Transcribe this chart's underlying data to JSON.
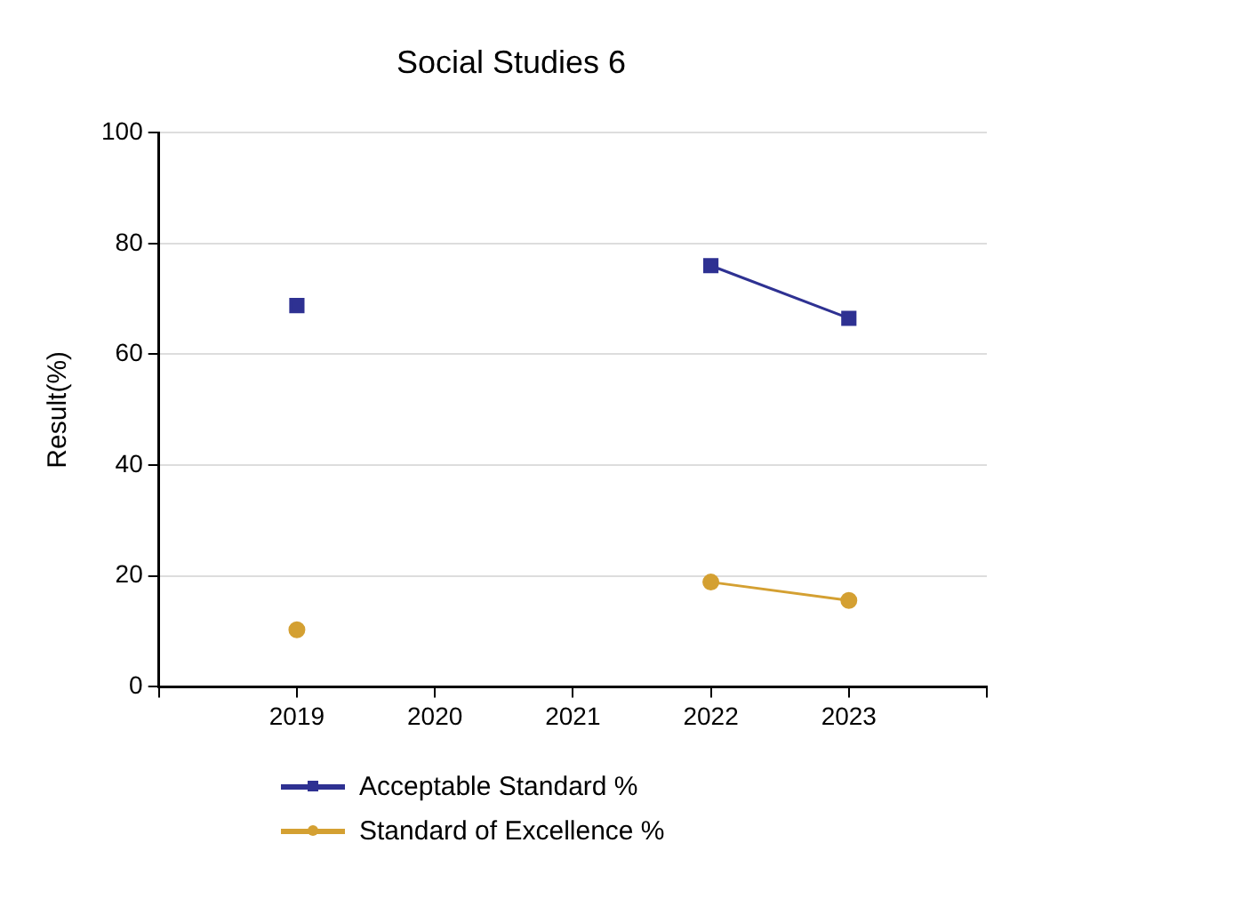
{
  "chart_data": {
    "type": "line",
    "title": "Social Studies 6",
    "ylabel": "Result(%)",
    "categories": [
      "2019",
      "2020",
      "2021",
      "2022",
      "2023"
    ],
    "series": [
      {
        "name": "Acceptable Standard %",
        "color": "#2e3192",
        "marker": "square",
        "values": [
          68.8,
          null,
          null,
          76.0,
          66.5
        ]
      },
      {
        "name": "Standard of Excellence %",
        "color": "#d4a032",
        "marker": "circle",
        "values": [
          10.3,
          null,
          null,
          18.9,
          15.6
        ]
      }
    ],
    "ylim": [
      0,
      100
    ],
    "yticks": [
      0,
      20,
      40,
      60,
      80,
      100
    ],
    "grid": "y",
    "legend": "bottom left",
    "line_style": "solid"
  }
}
